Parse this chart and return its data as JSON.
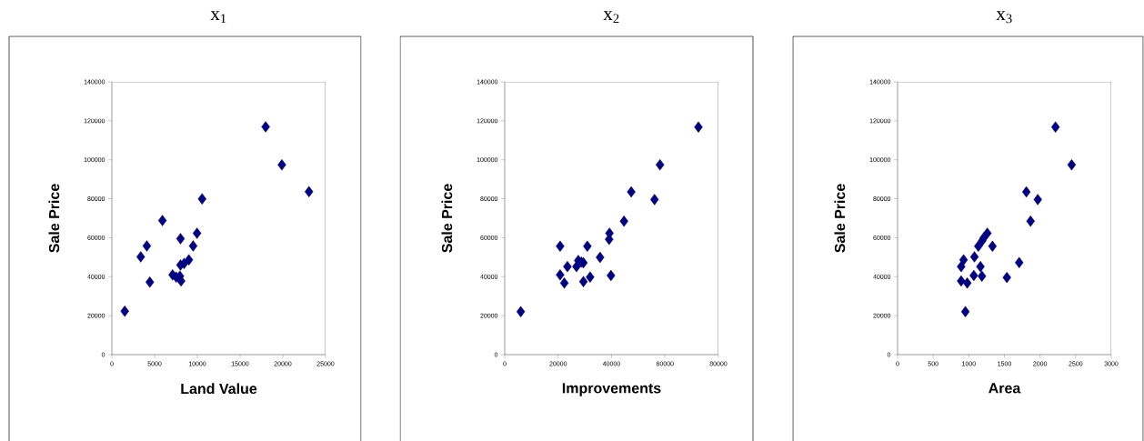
{
  "chart_data": [
    {
      "type": "scatter",
      "title": "x$_{1}$",
      "xlabel": "Land Value",
      "ylabel": "Sale Price",
      "color": "#000080",
      "marker": "diamond",
      "x": [
        1510,
        3380,
        4090,
        4440,
        5920,
        7110,
        7530,
        8030,
        8100,
        7960,
        8030,
        8450,
        9010,
        9510,
        9960,
        10560,
        17990,
        19890,
        23060
      ],
      "values": [
        22300,
        50200,
        55800,
        37200,
        68800,
        40900,
        39800,
        59500,
        37800,
        40300,
        46000,
        46800,
        48600,
        55800,
        62300,
        79900,
        116900,
        97400,
        83600
      ],
      "xlim": [
        0,
        25000
      ],
      "ylim": [
        0,
        140000
      ],
      "xticks": [
        0,
        5000,
        10000,
        15000,
        20000,
        25000
      ],
      "yticks": [
        0,
        20000,
        40000,
        60000,
        80000,
        100000,
        120000,
        140000
      ]
    },
    {
      "type": "scatter",
      "title": "x$_{2}$",
      "xlabel": "Improvements",
      "ylabel": "Sale Price",
      "color": "#000080",
      "marker": "diamond",
      "x": [
        6000,
        20740,
        20740,
        22320,
        23460,
        26860,
        27540,
        28670,
        29460,
        29460,
        30940,
        31950,
        35690,
        39090,
        39210,
        39770,
        44650,
        47370,
        56090,
        58130,
        72520
      ],
      "values": [
        22000,
        55600,
        40900,
        36700,
        45200,
        45200,
        48300,
        47500,
        47100,
        37500,
        55600,
        39800,
        49900,
        59200,
        62300,
        40600,
        68500,
        83500,
        79600,
        97400,
        116800
      ],
      "xlim": [
        0,
        80000
      ],
      "ylim": [
        0,
        140000
      ],
      "xticks": [
        0,
        20000,
        40000,
        60000,
        80000
      ],
      "yticks": [
        0,
        20000,
        40000,
        60000,
        80000,
        100000,
        120000,
        140000
      ]
    },
    {
      "type": "scatter",
      "title": "x$_{3}$",
      "xlabel": "Area",
      "ylabel": "Sale Price",
      "color": "#000080",
      "marker": "diamond",
      "x": [
        952,
        893,
        978,
        893,
        927,
        1079,
        1070,
        1163,
        1184,
        1134,
        1188,
        1209,
        1260,
        1332,
        1534,
        1707,
        1808,
        1867,
        1968,
        2217,
        2444
      ],
      "values": [
        22000,
        37800,
        36700,
        45200,
        48600,
        50200,
        40600,
        45200,
        40300,
        55600,
        58400,
        59900,
        62300,
        55600,
        39600,
        47200,
        83500,
        68500,
        79600,
        116800,
        97400
      ],
      "xlim": [
        0,
        3000
      ],
      "ylim": [
        0,
        140000
      ],
      "xticks": [
        0,
        500,
        1000,
        1500,
        2000,
        2500,
        3000
      ],
      "yticks": [
        0,
        20000,
        40000,
        60000,
        80000,
        100000,
        120000,
        140000
      ]
    }
  ]
}
